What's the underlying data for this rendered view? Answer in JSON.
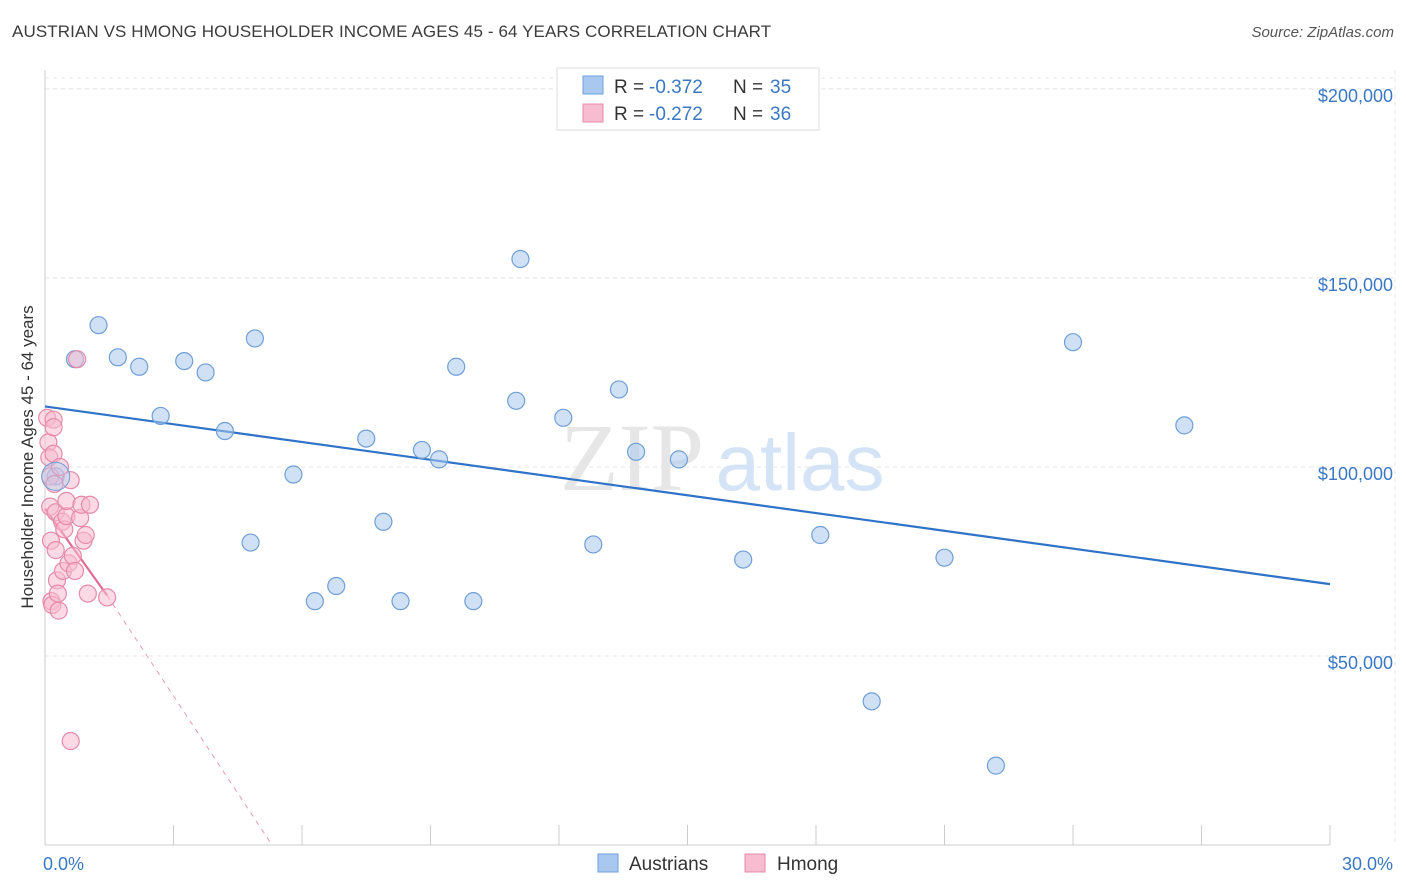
{
  "title": "AUSTRIAN VS HMONG HOUSEHOLDER INCOME AGES 45 - 64 YEARS CORRELATION CHART",
  "source": "Source: ZipAtlas.com",
  "watermark": {
    "zip": "ZIP",
    "atlas": "atlas"
  },
  "legend_top": [
    {
      "r_label": "R = ",
      "r_value": "-0.372",
      "n_label": "N = ",
      "n_value": "35",
      "color": "#a9c8ef",
      "stroke": "#6f9fd8"
    },
    {
      "r_label": "R = ",
      "r_value": "-0.272",
      "n_label": "N = ",
      "n_value": "36",
      "color": "#f7bcd0",
      "stroke": "#e68aa8"
    }
  ],
  "legend_bottom": [
    {
      "name": "Austrians",
      "color": "#a9c8ef",
      "stroke": "#6f9fd8"
    },
    {
      "name": "Hmong",
      "color": "#f7bcd0",
      "stroke": "#e68aa8"
    }
  ],
  "chart_data": {
    "type": "scatter",
    "title": "AUSTRIAN VS HMONG HOUSEHOLDER INCOME AGES 45 - 64 YEARS CORRELATION CHART",
    "xlabel": "",
    "ylabel": "Householder Income Ages 45 - 64 years",
    "xlim": [
      0,
      30
    ],
    "ylim": [
      0,
      205000
    ],
    "x_tick_labels": [
      "0.0%",
      "30.0%"
    ],
    "y_ticks": [
      50000,
      100000,
      150000,
      200000
    ],
    "y_tick_labels": [
      "$50,000",
      "$100,000",
      "$150,000",
      "$200,000"
    ],
    "grid": true,
    "legend": "top-center",
    "series": [
      {
        "name": "Austrians",
        "color": "#6f9fd8",
        "fill": "#a9c8ef",
        "points": [
          [
            0.25,
            97500
          ],
          [
            0.7,
            128500
          ],
          [
            1.25,
            137500
          ],
          [
            1.7,
            129000
          ],
          [
            2.2,
            126500
          ],
          [
            2.7,
            113500
          ],
          [
            3.25,
            128000
          ],
          [
            3.75,
            125000
          ],
          [
            4.2,
            109500
          ],
          [
            4.8,
            80000
          ],
          [
            4.9,
            134000
          ],
          [
            5.8,
            98000
          ],
          [
            6.3,
            64500
          ],
          [
            6.8,
            68500
          ],
          [
            7.5,
            107500
          ],
          [
            7.9,
            85500
          ],
          [
            8.3,
            64500
          ],
          [
            8.8,
            104500
          ],
          [
            9.2,
            102000
          ],
          [
            9.6,
            126500
          ],
          [
            10.0,
            64500
          ],
          [
            11.0,
            117500
          ],
          [
            11.1,
            155000
          ],
          [
            12.1,
            113000
          ],
          [
            12.8,
            79500
          ],
          [
            13.4,
            120500
          ],
          [
            13.8,
            104000
          ],
          [
            14.8,
            102000
          ],
          [
            16.3,
            75500
          ],
          [
            18.1,
            82000
          ],
          [
            19.3,
            38000
          ],
          [
            21.0,
            76000
          ],
          [
            22.2,
            21000
          ],
          [
            24.0,
            133000
          ],
          [
            26.6,
            111000
          ]
        ],
        "trend": {
          "x": [
            0,
            30
          ],
          "y": [
            116000,
            69000
          ],
          "style": "solid"
        }
      },
      {
        "name": "Hmong",
        "color": "#e68aa8",
        "fill": "#f7bcd0",
        "points": [
          [
            0.05,
            113000
          ],
          [
            0.08,
            106500
          ],
          [
            0.1,
            102500
          ],
          [
            0.12,
            97500
          ],
          [
            0.12,
            89500
          ],
          [
            0.14,
            80500
          ],
          [
            0.15,
            64500
          ],
          [
            0.17,
            63500
          ],
          [
            0.2,
            112500
          ],
          [
            0.2,
            103500
          ],
          [
            0.22,
            95500
          ],
          [
            0.25,
            88000
          ],
          [
            0.25,
            78000
          ],
          [
            0.28,
            70000
          ],
          [
            0.3,
            66500
          ],
          [
            0.32,
            62000
          ],
          [
            0.2,
            110500
          ],
          [
            0.35,
            100000
          ],
          [
            0.4,
            85500
          ],
          [
            0.42,
            72500
          ],
          [
            0.45,
            83500
          ],
          [
            0.5,
            87000
          ],
          [
            0.5,
            91000
          ],
          [
            0.55,
            74500
          ],
          [
            0.6,
            96500
          ],
          [
            0.65,
            76500
          ],
          [
            0.7,
            72500
          ],
          [
            0.75,
            128500
          ],
          [
            0.82,
            86500
          ],
          [
            0.85,
            90000
          ],
          [
            0.6,
            27500
          ],
          [
            0.9,
            80500
          ],
          [
            0.95,
            82000
          ],
          [
            1.0,
            66500
          ],
          [
            1.05,
            90000
          ],
          [
            1.45,
            65500
          ]
        ],
        "trend": {
          "x": [
            0,
            1.45
          ],
          "y": [
            89000,
            66000
          ],
          "style": "solid",
          "extension": {
            "x": [
              1.45,
              5.3
            ],
            "y": [
              66000,
              0
            ],
            "style": "dashed"
          }
        }
      }
    ]
  }
}
